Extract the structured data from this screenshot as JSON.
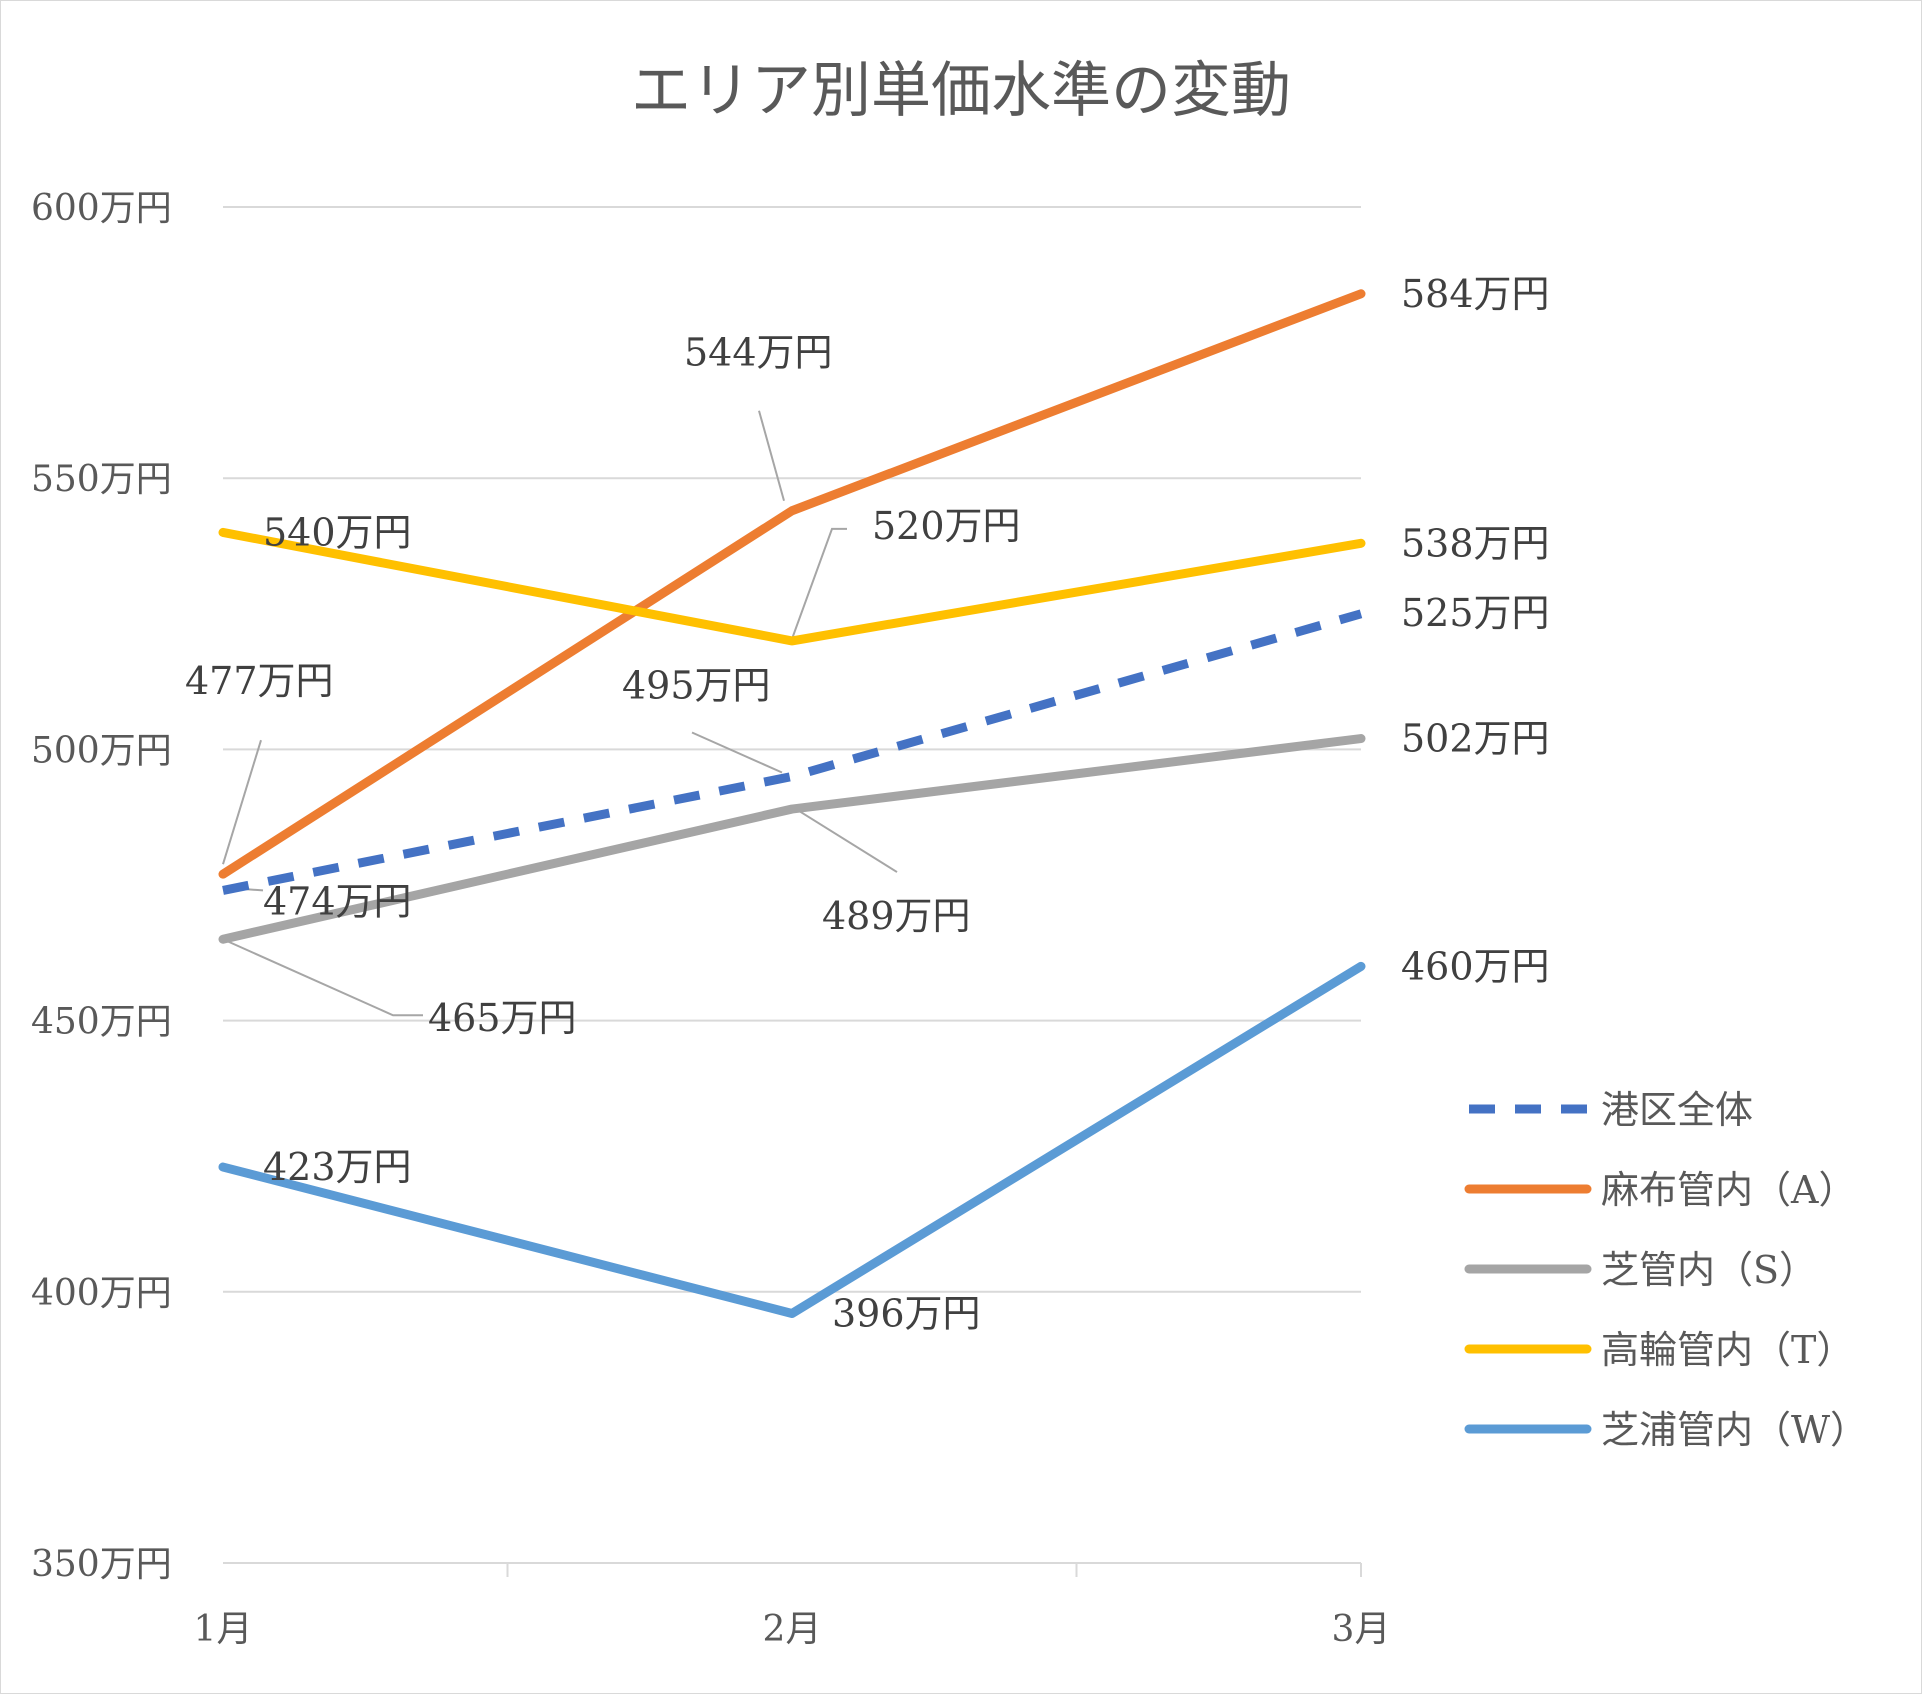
{
  "chart_data": {
    "type": "line",
    "title": "エリア別単価水準の変動",
    "categories": [
      "1月",
      "2月",
      "3月"
    ],
    "ylim": [
      350,
      600
    ],
    "yticks": [
      350,
      400,
      450,
      500,
      550,
      600
    ],
    "ytick_labels": [
      "350万円",
      "400万円",
      "450万円",
      "500万円",
      "550万円",
      "600万円"
    ],
    "grid": true,
    "legend_position": "right",
    "series": [
      {
        "name": "港区全体",
        "values": [
          474,
          495,
          525
        ],
        "labels": [
          "474万円",
          "495万円",
          "525万円"
        ],
        "color": "#4472C4",
        "dash": true
      },
      {
        "name": "麻布管内（A）",
        "values": [
          477,
          544,
          584
        ],
        "labels": [
          "477万円",
          "544万円",
          "584万円"
        ],
        "color": "#ED7D31",
        "dash": false
      },
      {
        "name": "芝管内（S）",
        "values": [
          465,
          489,
          502
        ],
        "labels": [
          "465万円",
          "489万円",
          "502万円"
        ],
        "color": "#A5A5A5",
        "dash": false
      },
      {
        "name": "高輪管内（T）",
        "values": [
          540,
          520,
          538
        ],
        "labels": [
          "540万円",
          "520万円",
          "538万円"
        ],
        "color": "#FFC000",
        "dash": false
      },
      {
        "name": "芝浦管内（W）",
        "values": [
          423,
          396,
          460
        ],
        "labels": [
          "423万円",
          "396万円",
          "460万円"
        ],
        "color": "#5B9BD5",
        "dash": false
      }
    ]
  }
}
